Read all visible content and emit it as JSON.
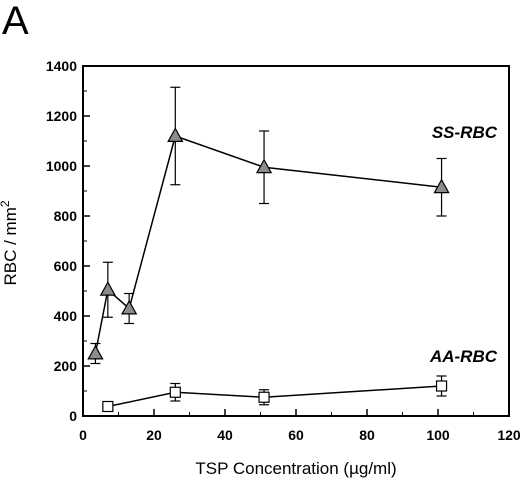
{
  "panel_label": "A",
  "chart_data": {
    "type": "line",
    "xlabel": "TSP Concentration (µg/ml)",
    "ylabel_main": "RBC / mm",
    "ylabel_sup": "2",
    "xlim": [
      0,
      120
    ],
    "ylim": [
      0,
      1400
    ],
    "xticks": [
      0,
      20,
      40,
      60,
      80,
      100,
      120
    ],
    "yticks": [
      0,
      200,
      400,
      600,
      800,
      1000,
      1200,
      1400
    ],
    "grid": false,
    "series": [
      {
        "name": "SS-RBC",
        "marker": "triangle",
        "fill": "#8c8c8c",
        "x": [
          3.5,
          7,
          13,
          26,
          51,
          101
        ],
        "y": [
          250,
          505,
          430,
          1120,
          995,
          915
        ],
        "err": [
          40,
          110,
          60,
          195,
          145,
          115
        ]
      },
      {
        "name": "AA-RBC",
        "marker": "square",
        "fill": "#ffffff",
        "x": [
          7,
          26,
          51,
          101
        ],
        "y": [
          38,
          95,
          75,
          120
        ],
        "err": [
          10,
          35,
          30,
          40
        ]
      }
    ]
  }
}
